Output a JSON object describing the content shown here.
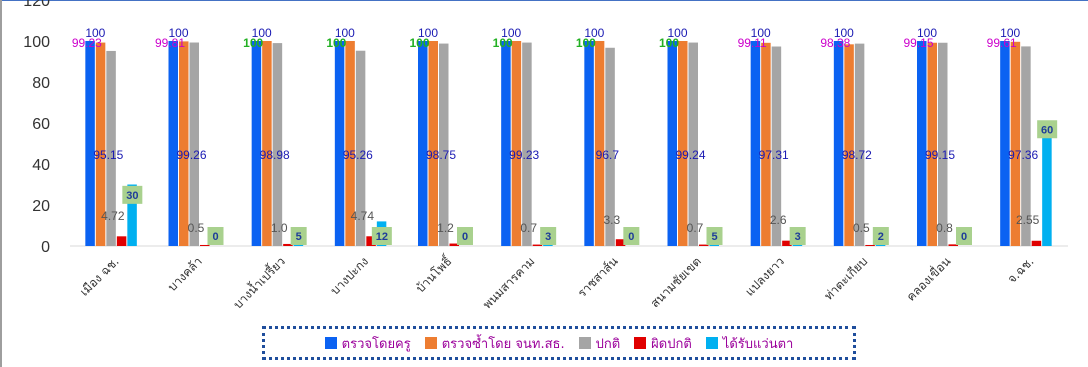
{
  "chart_data": {
    "type": "bar",
    "title": "",
    "xlabel": "",
    "ylabel": "",
    "ylim": [
      0,
      120
    ],
    "yticks": [
      0,
      20,
      40,
      60,
      80,
      100,
      120
    ],
    "grid": false,
    "legend_position": "bottom",
    "categories": [
      "เมือง ฉช.",
      "บางคล้า",
      "บางน้ำเปรี้ยว",
      "บางปะกง",
      "บ้านโพธิ์",
      "พนมสารคาม",
      "ราชสาส์น",
      "สนามชัยเขต",
      "แปลงยาว",
      "ท่าตะเกียบ",
      "คลองเขื่อน",
      "จ.ฉช."
    ],
    "series": [
      {
        "name": "ตรวจโดยครู",
        "color": "#0b62f2",
        "values": [
          100,
          100,
          100,
          100,
          100,
          100,
          100,
          100,
          100,
          100,
          100,
          100
        ],
        "labels": [
          "100",
          "100",
          "100",
          "100",
          "100",
          "100",
          "100",
          "100",
          "100",
          "100",
          "100",
          "100"
        ]
      },
      {
        "name": "ตรวจซ้ำโดย จนท.สธ.",
        "color": "#ed7d31",
        "values": [
          99.23,
          99.81,
          100,
          100,
          100,
          100,
          100,
          100,
          99.11,
          98.38,
          99.15,
          99.61
        ],
        "labels": [
          "99.23",
          "99.81",
          "100",
          "100",
          "100",
          "100",
          "100",
          "100",
          "99.11",
          "98.38",
          "99.15",
          "99.61"
        ]
      },
      {
        "name": "ปกติ",
        "color": "#a5a5a5",
        "values": [
          95.15,
          99.26,
          98.98,
          95.26,
          98.75,
          99.23,
          96.7,
          99.24,
          97.31,
          98.72,
          99.15,
          97.36
        ],
        "labels": [
          "95.15",
          "99.26",
          "98.98",
          "95.26",
          "98.75",
          "99.23",
          "96.7",
          "99.24",
          "97.31",
          "98.72",
          "99.15",
          "97.36"
        ]
      },
      {
        "name": "ผิดปกติ",
        "color": "#e00000",
        "values": [
          4.72,
          0.5,
          1.0,
          4.74,
          1.2,
          0.7,
          3.3,
          0.7,
          2.6,
          0.5,
          0.8,
          2.55
        ],
        "labels": [
          "4.72",
          "0.5",
          "1.0",
          "4.74",
          "1.2",
          "0.7",
          "3.3",
          "0.7",
          "2.6",
          "0.5",
          "0.8",
          "2.55"
        ]
      },
      {
        "name": "ได้รับแว่นตา",
        "color": "#00b0f0",
        "values": [
          30,
          0,
          5,
          12,
          0,
          3,
          0,
          5,
          3,
          2,
          0,
          60
        ],
        "labels": [
          "30",
          "0",
          "5",
          "12",
          "0",
          "3",
          "0",
          "5",
          "3",
          "2",
          "0",
          "60"
        ]
      }
    ],
    "label_colors": {
      "top_blue": "#1a1ab3",
      "top_magenta": "#cc00cc",
      "top_green": "#22b022",
      "mid_label": "#1a1ab3",
      "box_fill": "#a9d18e",
      "box_text": "#1f3d99",
      "axis_text": "#333333"
    }
  }
}
